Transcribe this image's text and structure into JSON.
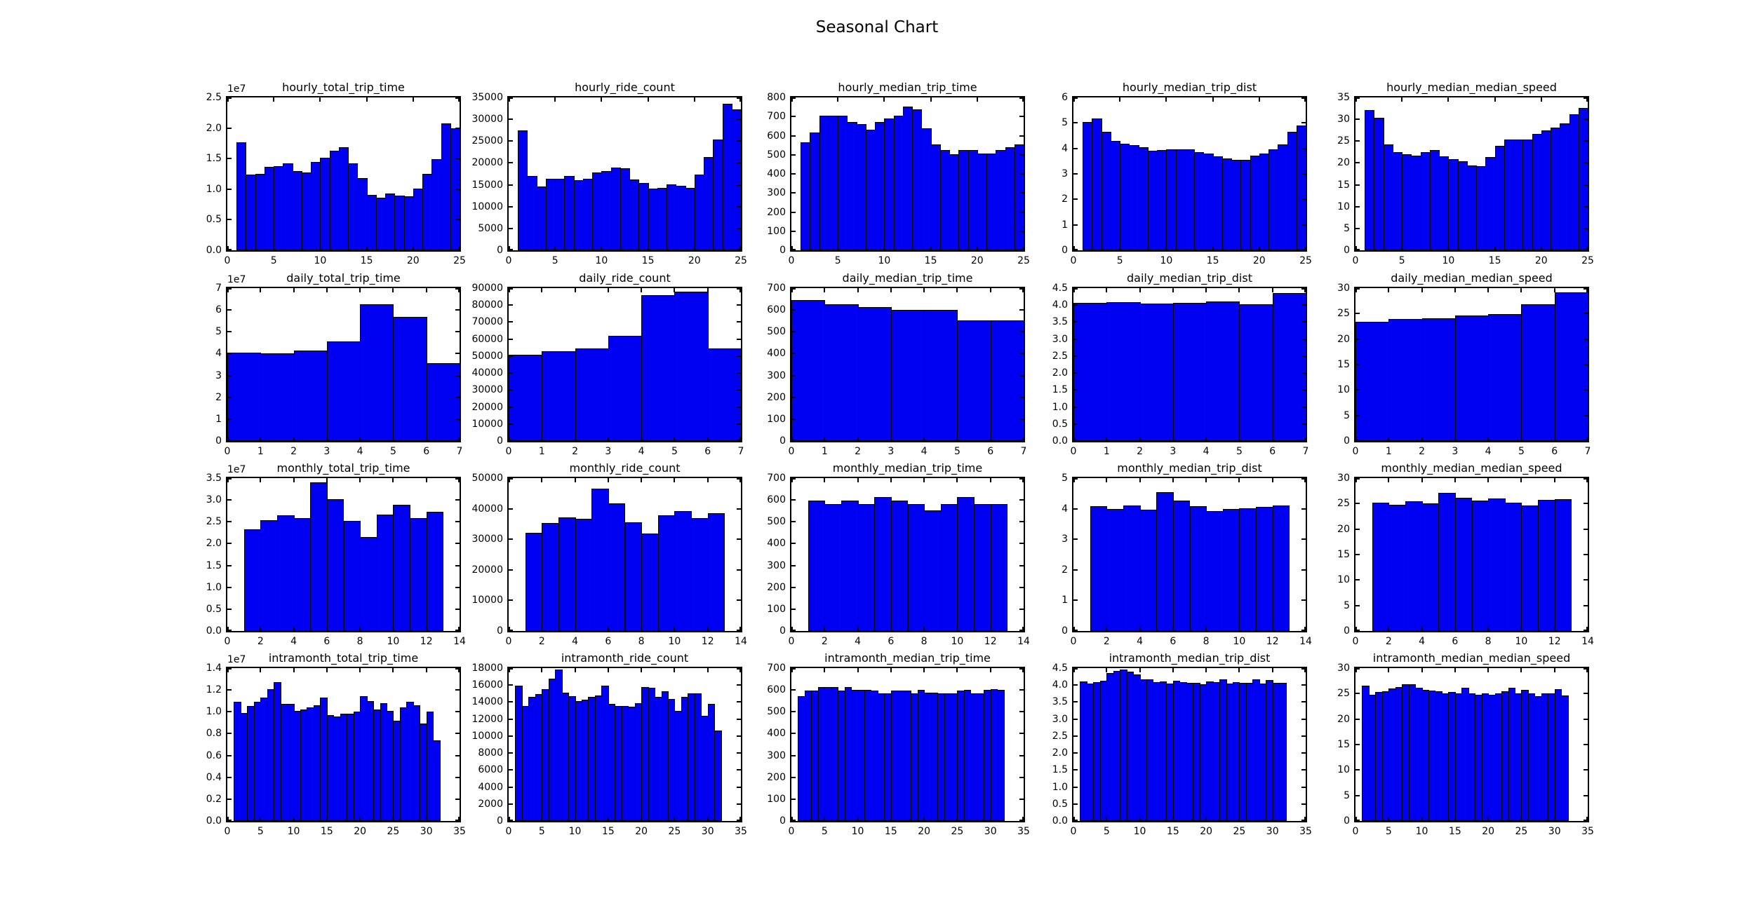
{
  "figure": {
    "title": "Seasonal Chart",
    "background_color": "#ffffff",
    "bar_color": "#0000f2",
    "bar_edge_color": "#000000",
    "axes_color": "#000000"
  },
  "chart_data": [
    {
      "type": "bar",
      "title": "hourly_total_trip_time",
      "xlabel": "",
      "ylabel": "",
      "x_start": 1,
      "bin_width": 1,
      "xlim": [
        0,
        25
      ],
      "xticks": [
        0,
        5,
        10,
        15,
        20,
        25
      ],
      "ylim": [
        0,
        25000000
      ],
      "yticks": [
        "0.0",
        "0.5",
        "1.0",
        "1.5",
        "2.0",
        "2.5"
      ],
      "y_offset": "1e7",
      "values": [
        17700000,
        12400000,
        12500000,
        13700000,
        13800000,
        14200000,
        13000000,
        12700000,
        14400000,
        15100000,
        16300000,
        16900000,
        14200000,
        11800000,
        9100000,
        8600000,
        9300000,
        9000000,
        8800000,
        10100000,
        12500000,
        14900000,
        20800000,
        20000000
      ]
    },
    {
      "type": "bar",
      "title": "hourly_ride_count",
      "xlabel": "",
      "ylabel": "",
      "x_start": 1,
      "bin_width": 1,
      "xlim": [
        0,
        25
      ],
      "xticks": [
        0,
        5,
        10,
        15,
        20,
        25
      ],
      "ylim": [
        0,
        35000
      ],
      "yticks": [
        "0",
        "5000",
        "10000",
        "15000",
        "20000",
        "25000",
        "30000",
        "35000"
      ],
      "y_offset": null,
      "values": [
        27500,
        17000,
        14600,
        16300,
        16300,
        17000,
        16100,
        16400,
        17800,
        18100,
        19000,
        18800,
        16200,
        15400,
        14100,
        14300,
        15100,
        14750,
        14350,
        17350,
        21400,
        25350,
        33500,
        32300
      ]
    },
    {
      "type": "bar",
      "title": "hourly_median_trip_time",
      "xlabel": "",
      "ylabel": "",
      "x_start": 1,
      "bin_width": 1,
      "xlim": [
        0,
        25
      ],
      "xticks": [
        0,
        5,
        10,
        15,
        20,
        25
      ],
      "ylim": [
        0,
        800
      ],
      "yticks": [
        "0",
        "100",
        "200",
        "300",
        "400",
        "500",
        "600",
        "700",
        "800"
      ],
      "y_offset": null,
      "values": [
        565,
        616,
        704,
        704,
        704,
        673,
        659,
        633,
        673,
        689,
        704,
        752,
        737,
        640,
        554,
        523,
        504,
        523,
        523,
        506,
        506,
        523,
        538,
        554
      ]
    },
    {
      "type": "bar",
      "title": "hourly_median_trip_dist",
      "xlabel": "",
      "ylabel": "",
      "x_start": 1,
      "bin_width": 1,
      "xlim": [
        0,
        25
      ],
      "xticks": [
        0,
        5,
        10,
        15,
        20,
        25
      ],
      "ylim": [
        0,
        6
      ],
      "yticks": [
        "0",
        "1",
        "2",
        "3",
        "4",
        "5",
        "6"
      ],
      "y_offset": null,
      "values": [
        5.05,
        5.18,
        4.66,
        4.29,
        4.18,
        4.12,
        4.04,
        3.91,
        3.93,
        3.97,
        3.95,
        3.95,
        3.86,
        3.81,
        3.69,
        3.61,
        3.56,
        3.55,
        3.72,
        3.79,
        3.96,
        4.16,
        4.66,
        4.91
      ]
    },
    {
      "type": "bar",
      "title": "hourly_median_median_speed",
      "xlabel": "",
      "ylabel": "",
      "x_start": 1,
      "bin_width": 1,
      "xlim": [
        0,
        25
      ],
      "xticks": [
        0,
        5,
        10,
        15,
        20,
        25
      ],
      "ylim": [
        0,
        35
      ],
      "yticks": [
        "0",
        "5",
        "10",
        "15",
        "20",
        "25",
        "30",
        "35"
      ],
      "y_offset": null,
      "values": [
        32.1,
        30.3,
        24.2,
        22.5,
        22.0,
        21.7,
        22.5,
        22.9,
        21.5,
        20.9,
        20.4,
        19.5,
        19.2,
        21.4,
        24.0,
        25.3,
        25.3,
        25.3,
        26.6,
        27.5,
        28.1,
        29.1,
        31.2,
        32.6
      ]
    },
    {
      "type": "bar",
      "title": "daily_total_trip_time",
      "xlabel": "",
      "ylabel": "",
      "x_start": 0,
      "bin_width": 1,
      "xlim": [
        0,
        7
      ],
      "xticks": [
        0,
        1,
        2,
        3,
        4,
        5,
        6,
        7
      ],
      "ylim": [
        0,
        70000000
      ],
      "yticks": [
        "0",
        "1",
        "2",
        "3",
        "4",
        "5",
        "6",
        "7"
      ],
      "y_offset": "1e7",
      "values": [
        40300000,
        40000000,
        41300000,
        45500000,
        62600000,
        56800000,
        35700000
      ]
    },
    {
      "type": "bar",
      "title": "daily_ride_count",
      "xlabel": "",
      "ylabel": "",
      "x_start": 0,
      "bin_width": 1,
      "xlim": [
        0,
        7
      ],
      "xticks": [
        0,
        1,
        2,
        3,
        4,
        5,
        6,
        7
      ],
      "ylim": [
        0,
        90000
      ],
      "yticks": [
        "0",
        "10000",
        "20000",
        "30000",
        "40000",
        "50000",
        "60000",
        "70000",
        "80000",
        "90000"
      ],
      "y_offset": null,
      "values": [
        50900,
        52900,
        54500,
        61800,
        85700,
        88000,
        54500
      ]
    },
    {
      "type": "bar",
      "title": "daily_median_trip_time",
      "xlabel": "",
      "ylabel": "",
      "x_start": 0,
      "bin_width": 1,
      "xlim": [
        0,
        7
      ],
      "xticks": [
        0,
        1,
        2,
        3,
        4,
        5,
        6,
        7
      ],
      "ylim": [
        0,
        700
      ],
      "yticks": [
        "0",
        "100",
        "200",
        "300",
        "400",
        "500",
        "600",
        "700"
      ],
      "y_offset": null,
      "values": [
        645,
        625,
        613,
        599,
        599,
        551,
        551
      ]
    },
    {
      "type": "bar",
      "title": "daily_median_trip_dist",
      "xlabel": "",
      "ylabel": "",
      "x_start": 0,
      "bin_width": 1,
      "xlim": [
        0,
        7
      ],
      "xticks": [
        0,
        1,
        2,
        3,
        4,
        5,
        6,
        7
      ],
      "ylim": [
        0,
        4.5
      ],
      "yticks": [
        "0.0",
        "0.5",
        "1.0",
        "1.5",
        "2.0",
        "2.5",
        "3.0",
        "3.5",
        "4.0",
        "4.5"
      ],
      "y_offset": null,
      "values": [
        4.07,
        4.09,
        4.04,
        4.06,
        4.11,
        4.03,
        4.35
      ]
    },
    {
      "type": "bar",
      "title": "daily_median_median_speed",
      "xlabel": "",
      "ylabel": "",
      "x_start": 0,
      "bin_width": 1,
      "xlim": [
        0,
        7
      ],
      "xticks": [
        0,
        1,
        2,
        3,
        4,
        5,
        6,
        7
      ],
      "ylim": [
        0,
        30
      ],
      "yticks": [
        "0",
        "5",
        "10",
        "15",
        "20",
        "25",
        "30"
      ],
      "y_offset": null,
      "values": [
        23.4,
        23.9,
        24.1,
        24.7,
        24.9,
        26.9,
        29.2
      ]
    },
    {
      "type": "bar",
      "title": "monthly_total_trip_time",
      "xlabel": "",
      "ylabel": "",
      "x_start": 1,
      "bin_width": 1,
      "xlim": [
        0,
        14
      ],
      "xticks": [
        0,
        2,
        4,
        6,
        8,
        10,
        12,
        14
      ],
      "ylim": [
        0,
        35000000
      ],
      "yticks": [
        "0.0",
        "0.5",
        "1.0",
        "1.5",
        "2.0",
        "2.5",
        "3.0",
        "3.5"
      ],
      "y_offset": "1e7",
      "values": [
        23300000,
        25300000,
        26500000,
        25800000,
        34000000,
        30200000,
        25200000,
        21500000,
        26600000,
        28900000,
        25800000,
        27300000
      ]
    },
    {
      "type": "bar",
      "title": "monthly_ride_count",
      "xlabel": "",
      "ylabel": "",
      "x_start": 1,
      "bin_width": 1,
      "xlim": [
        0,
        14
      ],
      "xticks": [
        0,
        2,
        4,
        6,
        8,
        10,
        12,
        14
      ],
      "ylim": [
        0,
        50000
      ],
      "yticks": [
        "0",
        "10000",
        "20000",
        "30000",
        "40000",
        "50000"
      ],
      "y_offset": null,
      "values": [
        32000,
        35300,
        37100,
        36600,
        46500,
        41800,
        35600,
        31800,
        37900,
        39200,
        37000,
        38600
      ]
    },
    {
      "type": "bar",
      "title": "monthly_median_trip_time",
      "xlabel": "",
      "ylabel": "",
      "x_start": 1,
      "bin_width": 1,
      "xlim": [
        0,
        14
      ],
      "xticks": [
        0,
        2,
        4,
        6,
        8,
        10,
        12,
        14
      ],
      "ylim": [
        0,
        700
      ],
      "yticks": [
        "0",
        "100",
        "200",
        "300",
        "400",
        "500",
        "600",
        "700"
      ],
      "y_offset": null,
      "values": [
        598,
        581,
        598,
        581,
        613,
        598,
        581,
        551,
        581,
        613,
        581,
        581
      ]
    },
    {
      "type": "bar",
      "title": "monthly_median_trip_dist",
      "xlabel": "",
      "ylabel": "",
      "x_start": 1,
      "bin_width": 1,
      "xlim": [
        0,
        14
      ],
      "xticks": [
        0,
        2,
        4,
        6,
        8,
        10,
        12,
        14
      ],
      "ylim": [
        0,
        5
      ],
      "yticks": [
        "0",
        "1",
        "2",
        "3",
        "4",
        "5"
      ],
      "y_offset": null,
      "values": [
        4.08,
        4.0,
        4.1,
        3.96,
        4.55,
        4.27,
        4.08,
        3.92,
        3.98,
        4.02,
        4.06,
        4.1
      ]
    },
    {
      "type": "bar",
      "title": "monthly_median_median_speed",
      "xlabel": "",
      "ylabel": "",
      "x_start": 1,
      "bin_width": 1,
      "xlim": [
        0,
        14
      ],
      "xticks": [
        0,
        2,
        4,
        6,
        8,
        10,
        12,
        14
      ],
      "ylim": [
        0,
        30
      ],
      "yticks": [
        "0",
        "5",
        "10",
        "15",
        "20",
        "25",
        "30"
      ],
      "y_offset": null,
      "values": [
        25.2,
        24.8,
        25.4,
        25.1,
        27.1,
        26.1,
        25.6,
        26.0,
        25.2,
        24.6,
        25.8,
        25.9
      ]
    },
    {
      "type": "bar",
      "title": "intramonth_total_trip_time",
      "xlabel": "",
      "ylabel": "",
      "x_start": 1,
      "bin_width": 1,
      "xlim": [
        0,
        35
      ],
      "xticks": [
        0,
        5,
        10,
        15,
        20,
        25,
        30,
        35
      ],
      "ylim": [
        0,
        14000000
      ],
      "yticks": [
        "0.0",
        "0.2",
        "0.4",
        "0.6",
        "0.8",
        "1.0",
        "1.2",
        "1.4"
      ],
      "y_offset": "1e7",
      "values": [
        10900000,
        9900000,
        10500000,
        10900000,
        11300000,
        12100000,
        12700000,
        10700000,
        10700000,
        10100000,
        10200000,
        10400000,
        10600000,
        11300000,
        9700000,
        9600000,
        9800000,
        9800000,
        10000000,
        11400000,
        11000000,
        10200000,
        10800000,
        10100000,
        9200000,
        10400000,
        10900000,
        10600000,
        8900000,
        10000000,
        7400000
      ]
    },
    {
      "type": "bar",
      "title": "intramonth_ride_count",
      "xlabel": "",
      "ylabel": "",
      "x_start": 1,
      "bin_width": 1,
      "xlim": [
        0,
        35
      ],
      "xticks": [
        0,
        5,
        10,
        15,
        20,
        25,
        30,
        35
      ],
      "ylim": [
        0,
        18000
      ],
      "yticks": [
        "0",
        "2000",
        "4000",
        "6000",
        "8000",
        "10000",
        "12000",
        "14000",
        "16000",
        "18000"
      ],
      "y_offset": null,
      "values": [
        15900,
        13500,
        14650,
        14950,
        15550,
        16800,
        17800,
        15100,
        14700,
        14100,
        14300,
        14650,
        14750,
        15900,
        13800,
        13500,
        13550,
        13450,
        13850,
        15800,
        15700,
        14650,
        15250,
        14350,
        12950,
        14600,
        15050,
        15050,
        12350,
        13750,
        10650
      ]
    },
    {
      "type": "bar",
      "title": "intramonth_median_trip_time",
      "xlabel": "",
      "ylabel": "",
      "x_start": 1,
      "bin_width": 1,
      "xlim": [
        0,
        35
      ],
      "xticks": [
        0,
        5,
        10,
        15,
        20,
        25,
        30,
        35
      ],
      "ylim": [
        0,
        700
      ],
      "yticks": [
        "0",
        "100",
        "200",
        "300",
        "400",
        "500",
        "600",
        "700"
      ],
      "y_offset": null,
      "values": [
        570,
        598,
        598,
        612,
        612,
        612,
        598,
        614,
        600,
        600,
        600,
        598,
        585,
        585,
        598,
        598,
        598,
        585,
        601,
        588,
        588,
        585,
        585,
        585,
        598,
        600,
        585,
        585,
        601,
        603,
        600
      ]
    },
    {
      "type": "bar",
      "title": "intramonth_median_trip_dist",
      "xlabel": "",
      "ylabel": "",
      "x_start": 1,
      "bin_width": 1,
      "xlim": [
        0,
        35
      ],
      "xticks": [
        0,
        5,
        10,
        15,
        20,
        25,
        30,
        35
      ],
      "ylim": [
        0,
        4.5
      ],
      "yticks": [
        "0.0",
        "0.5",
        "1.0",
        "1.5",
        "2.0",
        "2.5",
        "3.0",
        "3.5",
        "4.0",
        "4.5"
      ],
      "y_offset": null,
      "values": [
        4.11,
        4.05,
        4.09,
        4.13,
        4.36,
        4.41,
        4.45,
        4.4,
        4.31,
        4.18,
        4.16,
        4.08,
        4.1,
        4.05,
        4.12,
        4.09,
        4.07,
        4.07,
        4.03,
        4.11,
        4.09,
        4.16,
        4.05,
        4.08,
        4.06,
        4.07,
        4.17,
        4.05,
        4.15,
        4.06,
        4.07
      ]
    },
    {
      "type": "bar",
      "title": "intramonth_median_median_speed",
      "xlabel": "",
      "ylabel": "",
      "x_start": 1,
      "bin_width": 1,
      "xlim": [
        0,
        35
      ],
      "xticks": [
        0,
        5,
        10,
        15,
        20,
        25,
        30,
        35
      ],
      "ylim": [
        0,
        30
      ],
      "yticks": [
        "0",
        "5",
        "10",
        "15",
        "20",
        "25",
        "30"
      ],
      "y_offset": null,
      "values": [
        26.5,
        24.8,
        25.3,
        25.5,
        26.0,
        26.3,
        26.9,
        26.8,
        26.2,
        25.8,
        25.6,
        25.4,
        25.0,
        25.3,
        25.1,
        26.1,
        25.0,
        24.8,
        25.1,
        24.8,
        25.0,
        25.5,
        26.2,
        25.1,
        25.7,
        25.1,
        24.5,
        25.0,
        25.0,
        25.9,
        24.7
      ]
    }
  ]
}
